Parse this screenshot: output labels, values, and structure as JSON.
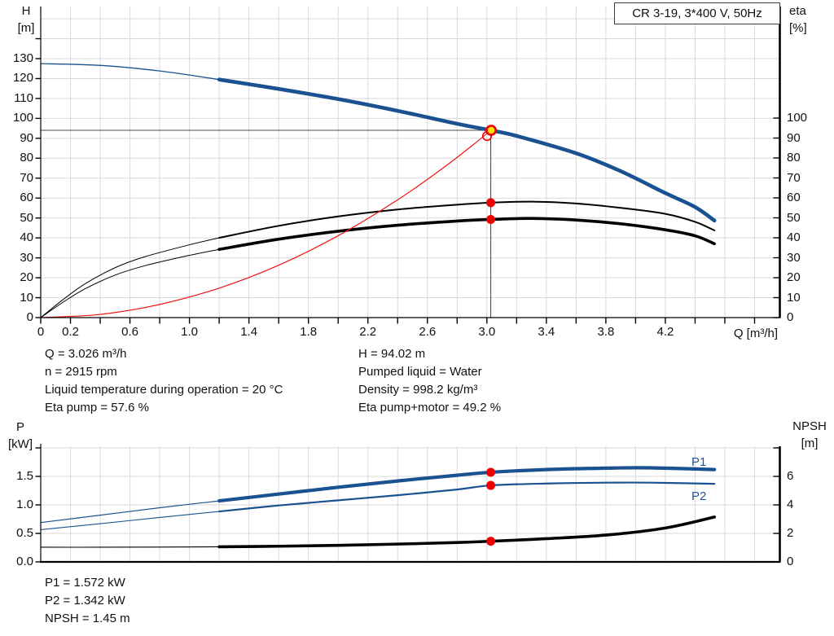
{
  "title_box": "CR 3-19, 3*400 V, 50Hz",
  "labels": {
    "h_axis_name": "H",
    "h_axis_unit": "[m]",
    "eta_axis_name": "eta",
    "eta_axis_unit": "[%]",
    "q_axis_label": "Q [m³/h]",
    "p_axis_name": "P",
    "p_axis_unit": "[kW]",
    "npsh_axis_name": "NPSH",
    "npsh_axis_unit": "[m]",
    "p1_curve": "P1",
    "p2_curve": "P2"
  },
  "info_left": [
    "Q = 3.026 m³/h",
    "n = 2915 rpm",
    "Liquid temperature during operation = 20 °C",
    "Eta pump = 57.6 %"
  ],
  "info_right": [
    "H = 94.02 m",
    "Pumped liquid = Water",
    "Density = 998.2 kg/m³",
    "Eta pump+motor = 49.2 %"
  ],
  "info_bottom": [
    "P1 = 1.572 kW",
    "P2 = 1.342 kW",
    "NPSH = 1.45 m"
  ],
  "operating_point": {
    "Q": 3.026,
    "H": 94.02,
    "eta_pump": 57.6,
    "eta_pump_motor": 49.2,
    "P1": 1.572,
    "P2": 1.342,
    "NPSH": 1.45
  },
  "colors": {
    "curve_blue": "#1a5190",
    "curve_black": "#000000",
    "curve_red": "#f01414",
    "dot_red": "#ee0000",
    "dot_yellow": "#ffe100",
    "grid": "#d9d9d9",
    "axis": "#000000",
    "crosshair": "#4d4d4d",
    "text": "#111111",
    "text_blue": "#1d5294"
  },
  "chart_data": [
    {
      "type": "line",
      "title": "CR 3-19, 3*400 V, 50Hz",
      "xlabel": "Q [m³/h]",
      "ylabel_left": "H [m]",
      "ylabel_right": "eta [%]",
      "x_range": [
        0,
        4.97
      ],
      "y_left_range": [
        0,
        156
      ],
      "y_right_range": [
        0,
        100
      ],
      "grid": true,
      "x_tick_labels": [
        "0",
        "0.2",
        "0.6",
        "1.0",
        "1.4",
        "1.8",
        "2.2",
        "2.6",
        "3.0",
        "3.4",
        "3.8",
        "4.2"
      ],
      "y_left_tick_labels": [
        "0",
        "10",
        "20",
        "30",
        "40",
        "50",
        "60",
        "70",
        "80",
        "90",
        "100",
        "110",
        "120",
        "130"
      ],
      "y_right_tick_labels": [
        "0",
        "10",
        "20",
        "30",
        "40",
        "50",
        "60",
        "70",
        "80",
        "90",
        "100"
      ],
      "series": [
        {
          "name": "Head curve QH",
          "axis": "H",
          "color_key": "curve_blue",
          "width_thin": 1.3,
          "width_thick": 4.6,
          "thick_from": 1.2,
          "points": [
            [
              0,
              127.5
            ],
            [
              0.4,
              126.6
            ],
            [
              0.8,
              123.8
            ],
            [
              1.2,
              119.5
            ],
            [
              1.6,
              114.8
            ],
            [
              2.0,
              109.7
            ],
            [
              2.4,
              103.8
            ],
            [
              2.8,
              97.3
            ],
            [
              3.026,
              94.02
            ],
            [
              3.2,
              91.2
            ],
            [
              3.6,
              82.5
            ],
            [
              3.9,
              73.5
            ],
            [
              4.2,
              62.5
            ],
            [
              4.4,
              55.5
            ],
            [
              4.53,
              48.7
            ]
          ]
        },
        {
          "name": "Eta pump",
          "axis": "eta",
          "color_key": "curve_black",
          "width_thin": 1.0,
          "width_thick": 2.0,
          "thick_from": 1.2,
          "points": [
            [
              0,
              0
            ],
            [
              0.15,
              9
            ],
            [
              0.3,
              17
            ],
            [
              0.5,
              25
            ],
            [
              0.7,
              30.5
            ],
            [
              1.0,
              36.5
            ],
            [
              1.2,
              40
            ],
            [
              1.6,
              46
            ],
            [
              2.0,
              50.7
            ],
            [
              2.4,
              54.2
            ],
            [
              2.8,
              56.6
            ],
            [
              3.026,
              57.6
            ],
            [
              3.3,
              58.1
            ],
            [
              3.6,
              57.2
            ],
            [
              3.9,
              55
            ],
            [
              4.2,
              52
            ],
            [
              4.4,
              48
            ],
            [
              4.53,
              43.7
            ]
          ]
        },
        {
          "name": "Eta pump+motor",
          "axis": "eta",
          "color_key": "curve_black",
          "width_thin": 1.0,
          "width_thick": 3.6,
          "thick_from": 1.2,
          "points": [
            [
              0,
              0
            ],
            [
              0.15,
              7.7
            ],
            [
              0.3,
              14.5
            ],
            [
              0.5,
              21.3
            ],
            [
              0.7,
              26
            ],
            [
              1.0,
              31.2
            ],
            [
              1.2,
              34.2
            ],
            [
              1.6,
              39.3
            ],
            [
              2.0,
              43.3
            ],
            [
              2.4,
              46.3
            ],
            [
              2.8,
              48.4
            ],
            [
              3.026,
              49.2
            ],
            [
              3.3,
              49.7
            ],
            [
              3.6,
              48.9
            ],
            [
              3.9,
              47
            ],
            [
              4.2,
              44
            ],
            [
              4.4,
              41
            ],
            [
              4.53,
              37
            ]
          ]
        },
        {
          "name": "Duty system curve",
          "axis": "H",
          "color_key": "curve_red",
          "width_thin": 1.2,
          "width_thick": 1.2,
          "thick_from": null,
          "points": [
            [
              0,
              0
            ],
            [
              0.4,
              1.6
            ],
            [
              0.8,
              6.6
            ],
            [
              1.2,
              14.8
            ],
            [
              1.6,
              26.3
            ],
            [
              2.0,
              41.1
            ],
            [
              2.4,
              59.1
            ],
            [
              2.7,
              74.8
            ],
            [
              2.9,
              86.3
            ],
            [
              3.026,
              94.02
            ]
          ]
        }
      ]
    },
    {
      "type": "line",
      "xlabel": "",
      "ylabel_left": "P [kW]",
      "ylabel_right": "NPSH [m]",
      "x_range": [
        0,
        4.97
      ],
      "y_left_range": [
        0,
        2.03
      ],
      "y_right_range": [
        0,
        8.1
      ],
      "grid": true,
      "y_left_tick_labels": [
        "0.0",
        "0.5",
        "1.0",
        "1.5"
      ],
      "y_right_tick_labels": [
        "0",
        "2",
        "4",
        "6"
      ],
      "series": [
        {
          "name": "P1",
          "axis": "P",
          "color_key": "curve_blue",
          "width_thin": 1.2,
          "width_thick": 4.2,
          "thick_from": 1.2,
          "points": [
            [
              0,
              0.69
            ],
            [
              0.4,
              0.82
            ],
            [
              0.8,
              0.95
            ],
            [
              1.2,
              1.07
            ],
            [
              1.6,
              1.19
            ],
            [
              2.0,
              1.31
            ],
            [
              2.4,
              1.42
            ],
            [
              2.8,
              1.52
            ],
            [
              3.026,
              1.572
            ],
            [
              3.4,
              1.62
            ],
            [
              3.8,
              1.645
            ],
            [
              4.1,
              1.65
            ],
            [
              4.53,
              1.62
            ]
          ]
        },
        {
          "name": "P2",
          "axis": "P",
          "color_key": "curve_blue",
          "width_thin": 1.1,
          "width_thick": 2.2,
          "thick_from": 1.2,
          "points": [
            [
              0,
              0.565
            ],
            [
              0.4,
              0.67
            ],
            [
              0.8,
              0.78
            ],
            [
              1.2,
              0.885
            ],
            [
              1.6,
              0.99
            ],
            [
              2.0,
              1.08
            ],
            [
              2.4,
              1.17
            ],
            [
              2.8,
              1.27
            ],
            [
              3.026,
              1.342
            ],
            [
              3.4,
              1.375
            ],
            [
              3.8,
              1.39
            ],
            [
              4.1,
              1.39
            ],
            [
              4.53,
              1.37
            ]
          ]
        },
        {
          "name": "NPSH",
          "axis": "NPSH",
          "color_key": "curve_black",
          "width_thin": 1.1,
          "width_thick": 3.6,
          "thick_from": 1.2,
          "points": [
            [
              0,
              1.03
            ],
            [
              0.4,
              1.03
            ],
            [
              0.8,
              1.04
            ],
            [
              1.2,
              1.06
            ],
            [
              1.6,
              1.1
            ],
            [
              2.0,
              1.16
            ],
            [
              2.4,
              1.25
            ],
            [
              2.8,
              1.36
            ],
            [
              3.026,
              1.45
            ],
            [
              3.4,
              1.63
            ],
            [
              3.8,
              1.88
            ],
            [
              4.2,
              2.38
            ],
            [
              4.53,
              3.15
            ]
          ]
        }
      ]
    }
  ]
}
